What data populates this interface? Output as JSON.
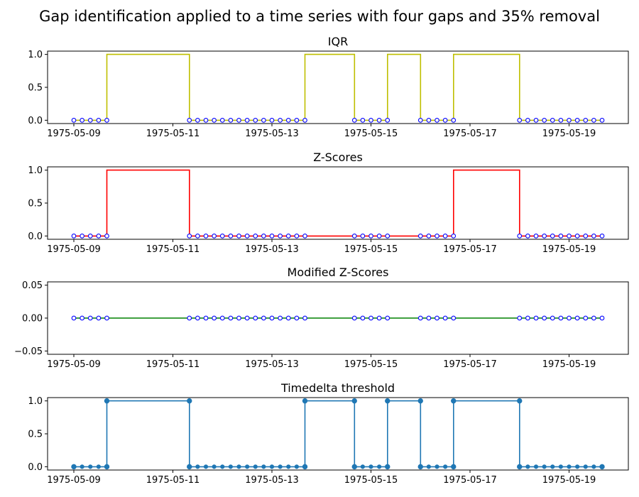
{
  "chart_data": {
    "title": "Gap identification applied to a time series with four gaps and 35% removal",
    "x_ticks": [
      "1975-05-09",
      "1975-05-11",
      "1975-05-13",
      "1975-05-15",
      "1975-05-17",
      "1975-05-19"
    ],
    "x_range_hours": [
      0,
      256
    ],
    "x_tick_hours": [
      0,
      48,
      96,
      144,
      192,
      240
    ],
    "sample_hours": [
      0,
      4,
      8,
      12,
      16,
      56,
      60,
      64,
      68,
      72,
      76,
      80,
      84,
      88,
      92,
      96,
      100,
      104,
      108,
      112,
      136,
      140,
      144,
      148,
      152,
      168,
      172,
      176,
      180,
      184,
      216,
      220,
      224,
      228,
      232,
      236,
      240,
      244,
      248,
      252,
      256
    ],
    "gap_line_hours": [
      0,
      16,
      56,
      112,
      136,
      152,
      168,
      184,
      216,
      256
    ],
    "panels": [
      {
        "type": "line",
        "title": "IQR",
        "line_color": "#bfbf00",
        "ylim": [
          -0.05,
          1.05
        ],
        "y_ticks": [
          "0.0",
          "0.5",
          "1.0"
        ],
        "y_tick_values": [
          0,
          0.5,
          1
        ],
        "flags": [
          0,
          1,
          0,
          1,
          0,
          1,
          0,
          1,
          0
        ],
        "markers": "open"
      },
      {
        "type": "line",
        "title": "Z-Scores",
        "line_color": "#ff0000",
        "ylim": [
          -0.05,
          1.05
        ],
        "y_ticks": [
          "0.0",
          "0.5",
          "1.0"
        ],
        "y_tick_values": [
          0,
          0.5,
          1
        ],
        "flags": [
          0,
          1,
          0,
          0,
          0,
          0,
          0,
          1,
          0
        ],
        "markers": "open"
      },
      {
        "type": "line",
        "title": "Modified Z-Scores",
        "line_color": "#008000",
        "ylim": [
          -0.055,
          0.055
        ],
        "y_ticks": [
          "0.05",
          "0.00",
          "−0.05"
        ],
        "y_tick_values": [
          0.05,
          0,
          -0.05
        ],
        "flags": [
          0,
          0,
          0,
          0,
          0,
          0,
          0,
          0,
          0
        ],
        "markers": "open"
      },
      {
        "type": "line",
        "title": "Timedelta threshold",
        "line_color": "#1f77b4",
        "ylim": [
          -0.05,
          1.05
        ],
        "y_ticks": [
          "0.0",
          "0.5",
          "1.0"
        ],
        "y_tick_values": [
          0,
          0.5,
          1
        ],
        "flags": [
          0,
          1,
          0,
          1,
          0,
          1,
          0,
          1,
          0
        ],
        "markers": "filled"
      }
    ]
  }
}
